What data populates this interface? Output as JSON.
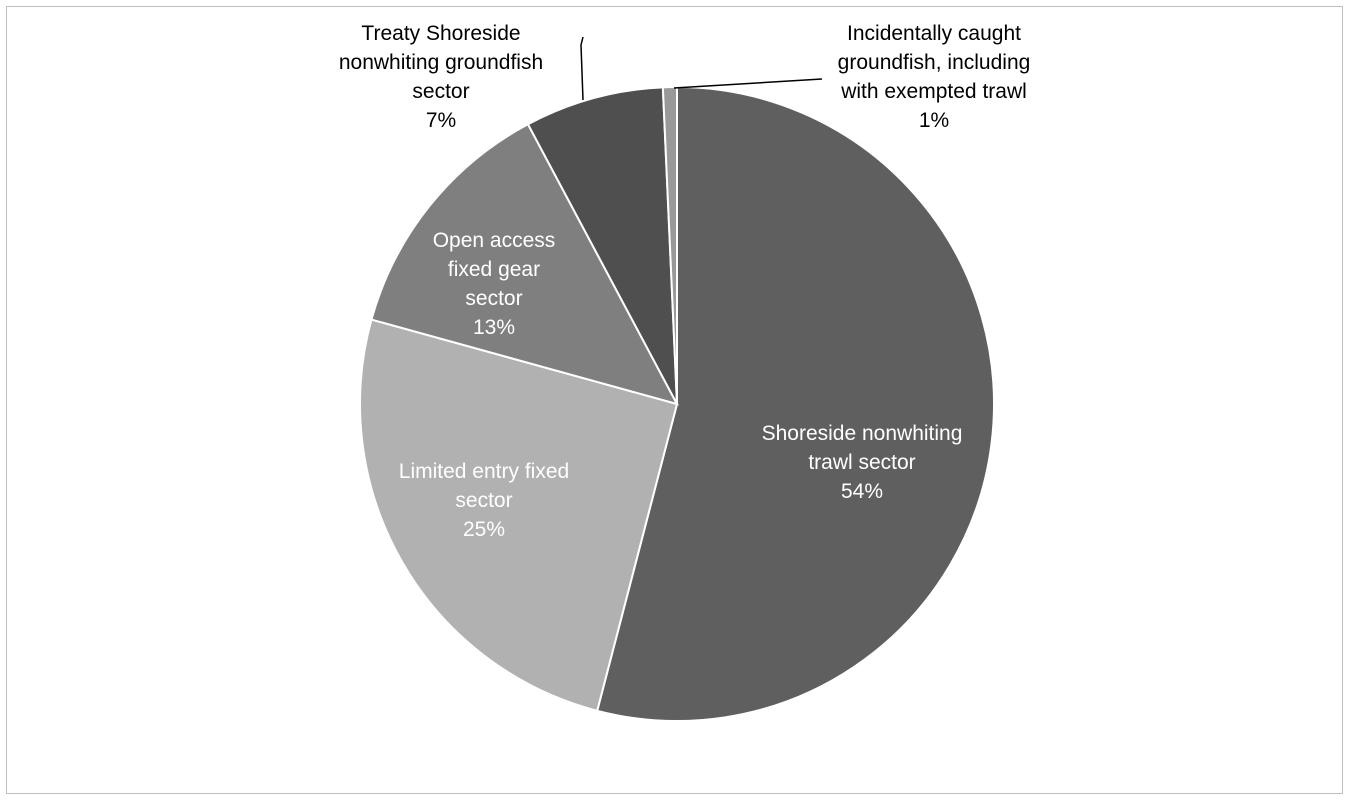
{
  "chart_data": {
    "type": "pie",
    "start_angle_deg": 0,
    "direction": "clockwise",
    "slices": [
      {
        "label": [
          "Shoreside nonwhiting",
          "trawl sector"
        ],
        "pct_text": "54%",
        "value": 54.05,
        "color": "#5f5f5f",
        "text_color": "#ffffff"
      },
      {
        "label": [
          "Limited entry fixed",
          "sector"
        ],
        "pct_text": "25%",
        "value": 25.24,
        "color": "#b1b1b1",
        "text_color": "#ffffff"
      },
      {
        "label": [
          "Open access",
          "fixed gear",
          "sector"
        ],
        "pct_text": "13%",
        "value": 12.92,
        "color": "#7f7f7f",
        "text_color": "#ffffff"
      },
      {
        "label": [
          "Treaty Shoreside",
          "nonwhiting groundfish",
          "sector"
        ],
        "pct_text": "7%",
        "value": 7.08,
        "color": "#4f4f4f",
        "text_color": "#000000"
      },
      {
        "label": [
          "Incidentally caught",
          "groundfish, including",
          "with exempted trawl"
        ],
        "pct_text": "1%",
        "value": 0.71,
        "color": "#999999",
        "text_color": "#000000"
      }
    ]
  }
}
